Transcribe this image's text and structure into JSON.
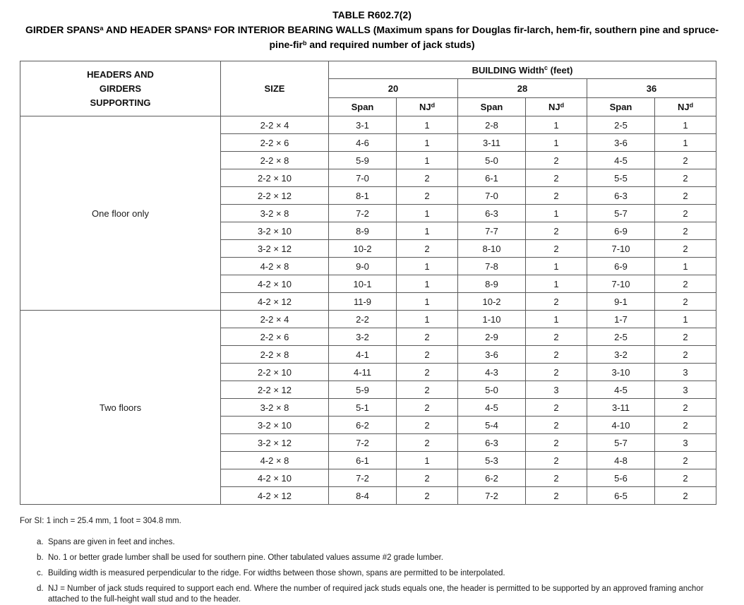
{
  "colors": {
    "border": "#5a5a5a",
    "text": "#1c1c1c",
    "bg": "#ffffff"
  },
  "title": {
    "table_number": "TABLE R602.7(2)",
    "h_part1": "GIRDER SPANS",
    "h_sup1": "a",
    "h_part2": " AND HEADER SPANS",
    "h_sup2": "a",
    "h_part3": " FOR INTERIOR BEARING WALLS (Maximum spans for Douglas fir-larch, hem-fir, southern pine and spruce-",
    "h_part4": "pine-fir",
    "h_sup3": "b",
    "h_part5": " and required number of jack studs)"
  },
  "header": {
    "supporting_label": "HEADERS AND\nGIRDERS\nSUPPORTING",
    "size_label": "SIZE",
    "building_width_label": "BUILDING Width",
    "building_width_sup": "c",
    "building_width_unit": " (feet)",
    "width_values": [
      "20",
      "28",
      "36"
    ],
    "span_label": "Span",
    "nj_label": "NJ",
    "nj_sup": "d"
  },
  "sections": [
    {
      "label": "One floor only",
      "rows": [
        {
          "size": "2-2 × 4",
          "cells": [
            "3-1",
            "1",
            "2-8",
            "1",
            "2-5",
            "1"
          ]
        },
        {
          "size": "2-2 × 6",
          "cells": [
            "4-6",
            "1",
            "3-11",
            "1",
            "3-6",
            "1"
          ]
        },
        {
          "size": "2-2 × 8",
          "cells": [
            "5-9",
            "1",
            "5-0",
            "2",
            "4-5",
            "2"
          ]
        },
        {
          "size": "2-2 × 10",
          "cells": [
            "7-0",
            "2",
            "6-1",
            "2",
            "5-5",
            "2"
          ]
        },
        {
          "size": "2-2 × 12",
          "cells": [
            "8-1",
            "2",
            "7-0",
            "2",
            "6-3",
            "2"
          ]
        },
        {
          "size": "3-2 × 8",
          "cells": [
            "7-2",
            "1",
            "6-3",
            "1",
            "5-7",
            "2"
          ]
        },
        {
          "size": "3-2 × 10",
          "cells": [
            "8-9",
            "1",
            "7-7",
            "2",
            "6-9",
            "2"
          ]
        },
        {
          "size": "3-2 × 12",
          "cells": [
            "10-2",
            "2",
            "8-10",
            "2",
            "7-10",
            "2"
          ]
        },
        {
          "size": "4-2 × 8",
          "cells": [
            "9-0",
            "1",
            "7-8",
            "1",
            "6-9",
            "1"
          ]
        },
        {
          "size": "4-2 × 10",
          "cells": [
            "10-1",
            "1",
            "8-9",
            "1",
            "7-10",
            "2"
          ]
        },
        {
          "size": "4-2 × 12",
          "cells": [
            "11-9",
            "1",
            "10-2",
            "2",
            "9-1",
            "2"
          ]
        }
      ]
    },
    {
      "label": "Two floors",
      "rows": [
        {
          "size": "2-2 × 4",
          "cells": [
            "2-2",
            "1",
            "1-10",
            "1",
            "1-7",
            "1"
          ]
        },
        {
          "size": "2-2 × 6",
          "cells": [
            "3-2",
            "2",
            "2-9",
            "2",
            "2-5",
            "2"
          ]
        },
        {
          "size": "2-2 × 8",
          "cells": [
            "4-1",
            "2",
            "3-6",
            "2",
            "3-2",
            "2"
          ]
        },
        {
          "size": "2-2 × 10",
          "cells": [
            "4-11",
            "2",
            "4-3",
            "2",
            "3-10",
            "3"
          ]
        },
        {
          "size": "2-2 × 12",
          "cells": [
            "5-9",
            "2",
            "5-0",
            "3",
            "4-5",
            "3"
          ]
        },
        {
          "size": "3-2 × 8",
          "cells": [
            "5-1",
            "2",
            "4-5",
            "2",
            "3-11",
            "2"
          ]
        },
        {
          "size": "3-2 × 10",
          "cells": [
            "6-2",
            "2",
            "5-4",
            "2",
            "4-10",
            "2"
          ]
        },
        {
          "size": "3-2 × 12",
          "cells": [
            "7-2",
            "2",
            "6-3",
            "2",
            "5-7",
            "3"
          ]
        },
        {
          "size": "4-2 × 8",
          "cells": [
            "6-1",
            "1",
            "5-3",
            "2",
            "4-8",
            "2"
          ]
        },
        {
          "size": "4-2 × 10",
          "cells": [
            "7-2",
            "2",
            "6-2",
            "2",
            "5-6",
            "2"
          ]
        },
        {
          "size": "4-2 × 12",
          "cells": [
            "8-4",
            "2",
            "7-2",
            "2",
            "6-5",
            "2"
          ]
        }
      ]
    }
  ],
  "si_note": "For SI: 1 inch = 25.4 mm, 1 foot = 304.8 mm.",
  "footnotes": [
    {
      "marker": "a.",
      "text": "Spans are given in feet and inches."
    },
    {
      "marker": "b.",
      "text": "No. 1 or better grade lumber shall be used for southern pine. Other tabulated values assume #2 grade lumber."
    },
    {
      "marker": "c.",
      "text": "Building width is measured perpendicular to the ridge. For widths between those shown, spans are permitted to be interpolated."
    },
    {
      "marker": "d.",
      "text": "NJ = Number of jack studs required to support each end. Where the number of required jack studs equals one, the header is permitted to be supported by an approved framing anchor attached to the full-height wall stud and to the header."
    }
  ]
}
